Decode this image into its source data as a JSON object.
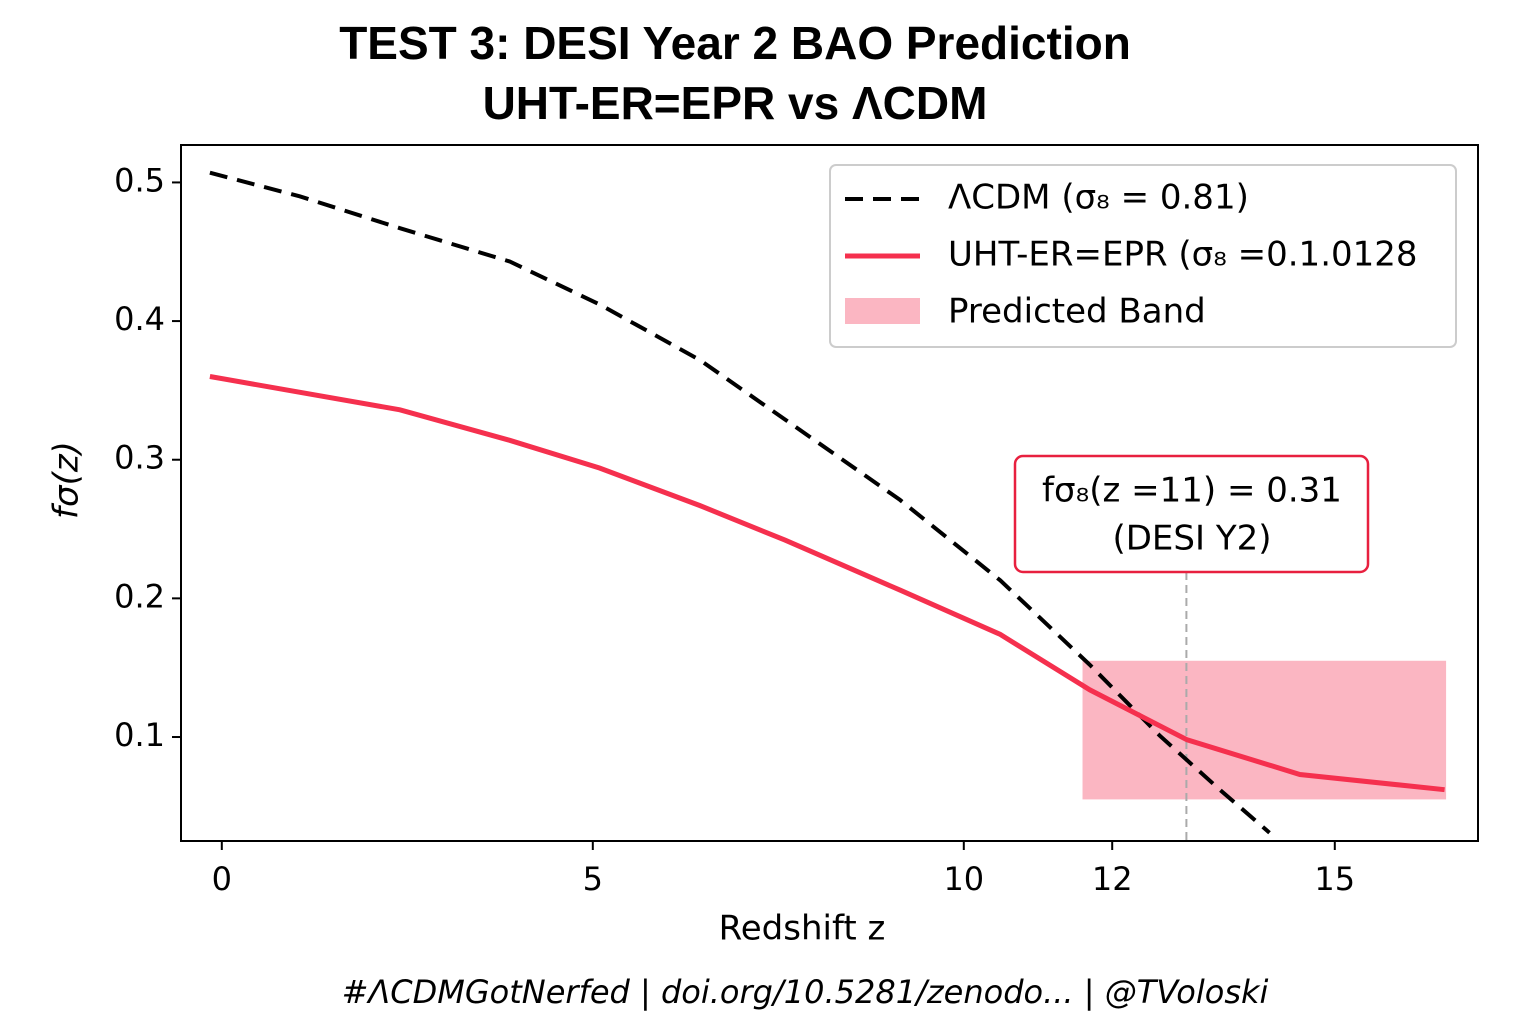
{
  "chart_data": {
    "type": "line",
    "title": [
      "TEST 3: DESI Year 2 BAO Prediction",
      "UHT-ER=EPR vs ΛCDM"
    ],
    "xlabel": "Redshift z",
    "ylabel": "fσ(z)",
    "footer": "#ΛCDMGotNerfed | doi.org/10.5281/zenodo... | @TVoloski",
    "xlim": [
      -0.55,
      16.93
    ],
    "ylim": [
      0.025,
      0.527
    ],
    "xticks": [
      0,
      5,
      10,
      12,
      15
    ],
    "yticks": [
      0.1,
      0.2,
      0.3,
      0.4,
      0.5
    ],
    "series": [
      {
        "name": "ΛCDM (σ₈ = 0.81)",
        "color": "#000000",
        "dashed": true,
        "x": [
          -0.16,
          1.05,
          2.4,
          3.88,
          5.09,
          6.44,
          7.59,
          9.14,
          10.49,
          11.7,
          12.64,
          13.45,
          14.12
        ],
        "values": [
          0.507,
          0.49,
          0.467,
          0.443,
          0.412,
          0.372,
          0.329,
          0.271,
          0.213,
          0.152,
          0.101,
          0.062,
          0.031
        ]
      },
      {
        "name": "UHT-ER=EPR (σ₈ =0.1.0128",
        "color": "#f5304e",
        "dashed": false,
        "x": [
          -0.16,
          2.4,
          3.88,
          5.09,
          6.44,
          7.59,
          9.14,
          10.49,
          11.7,
          13.01,
          14.53,
          16.48
        ],
        "values": [
          0.36,
          0.336,
          0.314,
          0.294,
          0.267,
          0.242,
          0.206,
          0.174,
          0.134,
          0.098,
          0.073,
          0.062
        ]
      }
    ],
    "band": {
      "name": "Predicted Band",
      "color": "#fbb6c2",
      "xrange": [
        11.6,
        16.5
      ],
      "yrange": [
        0.055,
        0.155
      ]
    },
    "marker_x": 13.0,
    "annotation": [
      "fσ₈(z =11) = 0.31",
      "(DESI Y2)"
    ],
    "annotation_color": "#e8203f"
  }
}
